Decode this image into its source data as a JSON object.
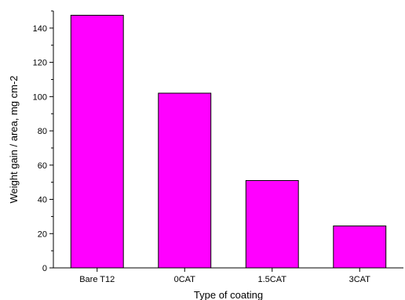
{
  "chart_data": {
    "type": "bar",
    "categories": [
      "Bare T12",
      "0CAT",
      "1.5CAT",
      "3CAT"
    ],
    "values": [
      147.5,
      102,
      51,
      24.5
    ],
    "xlabel": "Type of coating",
    "ylabel": "Weight gain / area, mg cm-2",
    "ylim": [
      0,
      150
    ],
    "yticks": [
      0,
      20,
      40,
      60,
      80,
      100,
      120,
      140
    ],
    "ytick_labels": [
      "0",
      "20",
      "40",
      "60",
      "80",
      "100",
      "120",
      "140"
    ],
    "grid": false,
    "legend": "none",
    "bar_color": "#ff00ff",
    "bar_edge_color": "#000000"
  }
}
